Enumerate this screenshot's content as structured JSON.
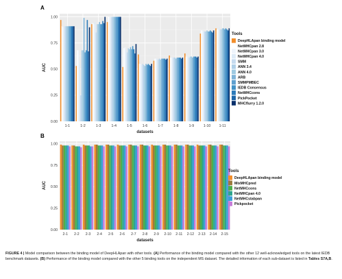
{
  "chart_data": [
    {
      "type": "bar",
      "panel": "A",
      "xlabel": "datasets",
      "ylabel": "AUC",
      "ylim": [
        0,
        1.03
      ],
      "yticks": [
        "0.00",
        "0.25",
        "0.50",
        "0.75",
        "1.00"
      ],
      "grid": true,
      "legend_position": "right",
      "legend_title": "Tools",
      "categories": [
        "1-1",
        "1-2",
        "1-3",
        "1-4",
        "1-5",
        "1-6",
        "1-7",
        "1-8",
        "1-9",
        "1-10",
        "1-11"
      ],
      "series": [
        {
          "name": "DeepHLApan binding model",
          "color": "#f28e2b",
          "values": [
            0.97,
            0.53,
            0.93,
            0.95,
            0.52,
            0.64,
            0.58,
            0.63,
            0.65,
            0.84,
            0.89
          ]
        },
        {
          "name": "NetMHCpan 2.8",
          "color": "#ffffff",
          "values": [
            0.91,
            0.68,
            0.94,
            1.0,
            0.7,
            0.55,
            0.6,
            0.61,
            0.62,
            0.87,
            0.88
          ]
        },
        {
          "name": "NetMHCpan 3.0",
          "color": "#eef4fb",
          "values": [
            0.9,
            0.68,
            0.93,
            1.0,
            0.71,
            0.55,
            0.6,
            0.61,
            0.62,
            0.87,
            0.88
          ]
        },
        {
          "name": "NetMHCpan 4.0",
          "color": "#deebf7",
          "values": [
            0.91,
            0.55,
            0.95,
            1.0,
            0.68,
            0.54,
            0.6,
            0.61,
            0.62,
            0.86,
            0.9
          ]
        },
        {
          "name": "SMM",
          "color": "#c6dbef",
          "values": [
            0.91,
            0.25,
            0.85,
            1.0,
            0.66,
            0.55,
            0.59,
            0.61,
            0.61,
            0.86,
            0.88
          ]
        },
        {
          "name": "ANN 3.4",
          "color": "#b0d0e8",
          "values": [
            0.91,
            0.68,
            0.93,
            1.0,
            0.7,
            0.54,
            0.6,
            0.61,
            0.62,
            0.86,
            0.88
          ]
        },
        {
          "name": "ANN 4.0",
          "color": "#9ecae1",
          "values": [
            0.91,
            0.68,
            0.93,
            1.0,
            0.69,
            0.53,
            0.59,
            0.6,
            0.62,
            0.87,
            0.89
          ]
        },
        {
          "name": "ARB",
          "color": "#7fb4d8",
          "values": [
            0.91,
            0.99,
            0.95,
            1.0,
            0.71,
            0.55,
            0.6,
            0.61,
            0.61,
            0.86,
            0.89
          ]
        },
        {
          "name": "SMMPMBEC",
          "color": "#5fa0cf",
          "values": [
            0.91,
            0.66,
            0.93,
            1.0,
            0.69,
            0.54,
            0.6,
            0.61,
            0.62,
            0.86,
            0.88
          ]
        },
        {
          "name": "IEDB Consensus",
          "color": "#4292c6",
          "values": [
            0.91,
            0.68,
            0.93,
            1.0,
            0.72,
            0.55,
            0.6,
            0.61,
            0.62,
            0.87,
            0.89
          ]
        },
        {
          "name": "NetMHCcons",
          "color": "#2d7bba",
          "values": [
            0.91,
            0.97,
            0.96,
            1.0,
            0.69,
            0.54,
            0.6,
            0.61,
            0.62,
            0.86,
            0.88
          ]
        },
        {
          "name": "PickPocket",
          "color": "#1c65a8",
          "values": [
            0.91,
            0.67,
            0.94,
            1.0,
            0.65,
            0.53,
            0.59,
            0.6,
            0.61,
            0.85,
            0.87
          ]
        },
        {
          "name": "MHCflurry 1.2.0",
          "color": "#08306b",
          "values": [
            0.91,
            0.9,
            1.0,
            1.0,
            0.74,
            0.55,
            0.6,
            0.61,
            0.62,
            0.87,
            0.89
          ]
        }
      ]
    },
    {
      "type": "bar",
      "panel": "B",
      "xlabel": "datasets",
      "ylabel": "AUC",
      "ylim": [
        0,
        1.03
      ],
      "yticks": [
        "0.00",
        "0.25",
        "0.50",
        "0.75",
        "1.00"
      ],
      "grid": true,
      "legend_position": "right",
      "legend_title": "Tools",
      "categories": [
        "2-1",
        "2-2",
        "2-3",
        "2-4",
        "2-5",
        "2-6",
        "2-7",
        "2-8",
        "2-9",
        "2-10",
        "2-11",
        "2-12",
        "2-13",
        "2-14",
        "2-15"
      ],
      "series": [
        {
          "name": "DeepHLApan binding model",
          "color": "#f28e2b",
          "values": [
            0.99,
            0.98,
            0.99,
            0.99,
            0.99,
            0.99,
            0.99,
            0.99,
            0.99,
            0.99,
            0.99,
            0.99,
            0.99,
            0.99,
            0.99
          ]
        },
        {
          "name": "MixMHCpred",
          "color": "#9b7a3c",
          "values": [
            0.98,
            0.98,
            0.98,
            0.99,
            0.99,
            0.98,
            0.99,
            0.99,
            0.98,
            0.99,
            0.99,
            0.99,
            0.98,
            0.99,
            0.99
          ]
        },
        {
          "name": "NetMHCcons",
          "color": "#4daf4a",
          "values": [
            0.98,
            0.97,
            0.98,
            0.98,
            0.98,
            0.98,
            0.98,
            0.98,
            0.98,
            0.98,
            0.98,
            0.98,
            0.98,
            0.98,
            0.98
          ]
        },
        {
          "name": "NetMHCpan 4.0",
          "color": "#2ca58d",
          "values": [
            0.98,
            0.97,
            0.98,
            0.98,
            0.98,
            0.98,
            0.98,
            0.98,
            0.98,
            0.98,
            0.98,
            0.98,
            0.98,
            0.98,
            0.98
          ]
        },
        {
          "name": "NetMHCstabpan",
          "color": "#3a9fd8",
          "values": [
            0.98,
            0.97,
            0.97,
            0.98,
            0.98,
            0.98,
            0.98,
            0.98,
            0.98,
            0.98,
            0.98,
            0.98,
            0.98,
            0.98,
            0.98
          ]
        },
        {
          "name": "Pickpocket",
          "color": "#c77cd9",
          "values": [
            0.97,
            0.96,
            0.97,
            0.97,
            0.97,
            0.97,
            0.97,
            0.97,
            0.97,
            0.97,
            0.97,
            0.97,
            0.97,
            0.97,
            0.97
          ]
        }
      ]
    }
  ],
  "caption": {
    "label": "FIGURE 4 |",
    "part1": " Model comparison between the binding model of DeepHLApan with other tools. ",
    "bold_a": "(A)",
    "part2": " Performance of the binding model compared with the other 12 well-acknowledged tools on the latest IEDB benchmark datasets. ",
    "bold_b": "(B)",
    "part3": " Performance of the binding model compared with the other 5 binding tools on the independent MS dataset. The detailed information of each sub-dataset is listed in ",
    "bold_tables": "Tables S7A,B",
    "part4": "."
  }
}
